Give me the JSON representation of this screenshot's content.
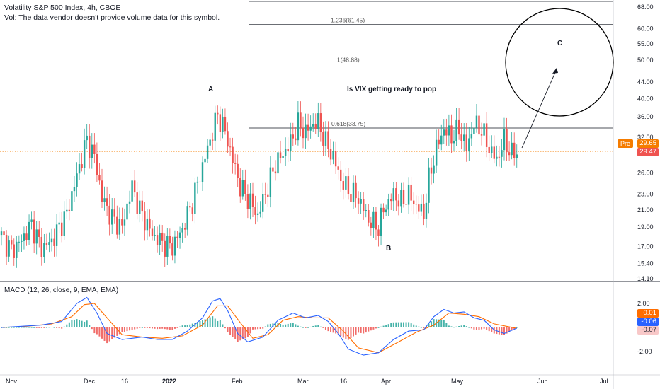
{
  "header": {
    "title": "Volatility S&P 500 Index, 4h, CBOE",
    "volume_note": "Vol: The data vendor doesn't provide volume data for this symbol."
  },
  "macd": {
    "label": "MACD (12, 26, close, 9, EMA, EMA)",
    "ticks": [
      "2.00",
      "-2.00"
    ],
    "badges": {
      "histogram": "0.01",
      "macd": "-0.06",
      "signal": "-0.07"
    }
  },
  "price": {
    "pre_label": "Pre",
    "pre_value": "29.65",
    "last_value": "29.47"
  },
  "colors": {
    "up": "#26a69a",
    "down": "#ef5350",
    "macd_line": "#2962ff",
    "signal_line": "#ff6d00",
    "price_line": "#f57c00",
    "hist_up": "#26a69a",
    "hist_down": "#ef5350"
  },
  "chart_data": {
    "type": "candlestick",
    "title": "Volatility S&P 500 Index, 4h, CBOE",
    "y_axis": {
      "scale": "log",
      "ticks": [
        "68.00",
        "60.00",
        "55.00",
        "50.00",
        "44.00",
        "40.00",
        "36.00",
        "32.00",
        "26.00",
        "23.00",
        "21.00",
        "19.00",
        "17.00",
        "15.40",
        "14.10"
      ]
    },
    "x_axis": {
      "ticks": [
        "Nov",
        "Dec",
        "16",
        "2022",
        "Feb",
        "Mar",
        "16",
        "Apr",
        "May",
        "Jun",
        "Jul"
      ]
    },
    "fib_levels": [
      {
        "label": "1.236(61.45)",
        "value": 61.45
      },
      {
        "label": "1(48.88)",
        "value": 48.88
      },
      {
        "label": "0.618(33.75)",
        "value": 33.75
      }
    ],
    "annotations": [
      {
        "text": "A"
      },
      {
        "text": "B"
      },
      {
        "text": "C"
      },
      {
        "text": "Is VIX getting ready to pop"
      }
    ],
    "pivots": [
      [
        0,
        18.0
      ],
      [
        4,
        16.6
      ],
      [
        8,
        17.6
      ],
      [
        12,
        19.3
      ],
      [
        16,
        16.8
      ],
      [
        20,
        17.5
      ],
      [
        26,
        20.5
      ],
      [
        30,
        25.5
      ],
      [
        34,
        31.5
      ],
      [
        37,
        28.5
      ],
      [
        40,
        22.5
      ],
      [
        44,
        20.0
      ],
      [
        48,
        19.0
      ],
      [
        52,
        24.0
      ],
      [
        55,
        21.0
      ],
      [
        60,
        18.2
      ],
      [
        65,
        17.2
      ],
      [
        68,
        17.0
      ],
      [
        72,
        18.8
      ],
      [
        76,
        22.0
      ],
      [
        80,
        27.0
      ],
      [
        84,
        33.0
      ],
      [
        86,
        36.5
      ],
      [
        89,
        33.0
      ],
      [
        92,
        28.0
      ],
      [
        95,
        24.0
      ],
      [
        98,
        22.5
      ],
      [
        102,
        20.3
      ],
      [
        106,
        24.0
      ],
      [
        109,
        27.5
      ],
      [
        112,
        29.0
      ],
      [
        115,
        31.0
      ],
      [
        118,
        34.5
      ],
      [
        121,
        33.0
      ],
      [
        124,
        34.5
      ],
      [
        126,
        34.8
      ],
      [
        129,
        31.0
      ],
      [
        132,
        28.5
      ],
      [
        135,
        25.0
      ],
      [
        138,
        23.5
      ],
      [
        142,
        22.5
      ],
      [
        146,
        19.8
      ],
      [
        150,
        19.0
      ],
      [
        152,
        21.0
      ],
      [
        156,
        23.0
      ],
      [
        159,
        22.0
      ],
      [
        162,
        23.0
      ],
      [
        165,
        21.5
      ],
      [
        168,
        20.5
      ],
      [
        170,
        25.0
      ],
      [
        173,
        30.0
      ],
      [
        176,
        33.5
      ],
      [
        179,
        32.0
      ],
      [
        182,
        33.5
      ],
      [
        185,
        30.0
      ],
      [
        188,
        34.5
      ],
      [
        191,
        33.5
      ],
      [
        194,
        30.0
      ],
      [
        197,
        28.0
      ],
      [
        200,
        31.5
      ],
      [
        203,
        29.0
      ],
      [
        205,
        29.47
      ]
    ],
    "macd_series": [
      [
        0,
        0.0
      ],
      [
        8,
        0.1
      ],
      [
        16,
        0.2
      ],
      [
        24,
        0.5
      ],
      [
        30,
        2.0
      ],
      [
        34,
        2.5
      ],
      [
        38,
        1.2
      ],
      [
        42,
        -0.5
      ],
      [
        48,
        -1.0
      ],
      [
        56,
        -0.8
      ],
      [
        62,
        -1.0
      ],
      [
        68,
        -1.0
      ],
      [
        74,
        -0.3
      ],
      [
        80,
        0.8
      ],
      [
        84,
        2.2
      ],
      [
        87,
        2.4
      ],
      [
        90,
        1.4
      ],
      [
        94,
        -0.5
      ],
      [
        98,
        -1.2
      ],
      [
        104,
        -0.8
      ],
      [
        110,
        0.6
      ],
      [
        116,
        1.2
      ],
      [
        121,
        0.8
      ],
      [
        126,
        1.0
      ],
      [
        130,
        0.5
      ],
      [
        134,
        -0.5
      ],
      [
        138,
        -1.8
      ],
      [
        144,
        -2.3
      ],
      [
        150,
        -2.1
      ],
      [
        156,
        -1.0
      ],
      [
        162,
        -0.3
      ],
      [
        168,
        -0.2
      ],
      [
        172,
        0.9
      ],
      [
        176,
        1.5
      ],
      [
        180,
        1.2
      ],
      [
        184,
        1.3
      ],
      [
        188,
        0.8
      ],
      [
        192,
        0.6
      ],
      [
        196,
        -0.2
      ],
      [
        200,
        -0.5
      ],
      [
        205,
        -0.06
      ]
    ],
    "signal_series": [
      [
        0,
        0.0
      ],
      [
        10,
        0.1
      ],
      [
        20,
        0.3
      ],
      [
        28,
        0.9
      ],
      [
        33,
        1.9
      ],
      [
        37,
        2.0
      ],
      [
        42,
        0.8
      ],
      [
        48,
        -0.6
      ],
      [
        56,
        -0.8
      ],
      [
        64,
        -0.9
      ],
      [
        72,
        -0.7
      ],
      [
        80,
        0.2
      ],
      [
        86,
        1.8
      ],
      [
        90,
        1.8
      ],
      [
        95,
        0.4
      ],
      [
        100,
        -0.9
      ],
      [
        106,
        -0.6
      ],
      [
        112,
        0.6
      ],
      [
        118,
        0.9
      ],
      [
        124,
        0.8
      ],
      [
        130,
        0.8
      ],
      [
        136,
        -0.3
      ],
      [
        142,
        -1.7
      ],
      [
        150,
        -2.1
      ],
      [
        158,
        -1.2
      ],
      [
        165,
        -0.4
      ],
      [
        172,
        0.2
      ],
      [
        178,
        1.2
      ],
      [
        184,
        1.1
      ],
      [
        190,
        0.9
      ],
      [
        196,
        0.3
      ],
      [
        205,
        -0.07
      ]
    ]
  }
}
